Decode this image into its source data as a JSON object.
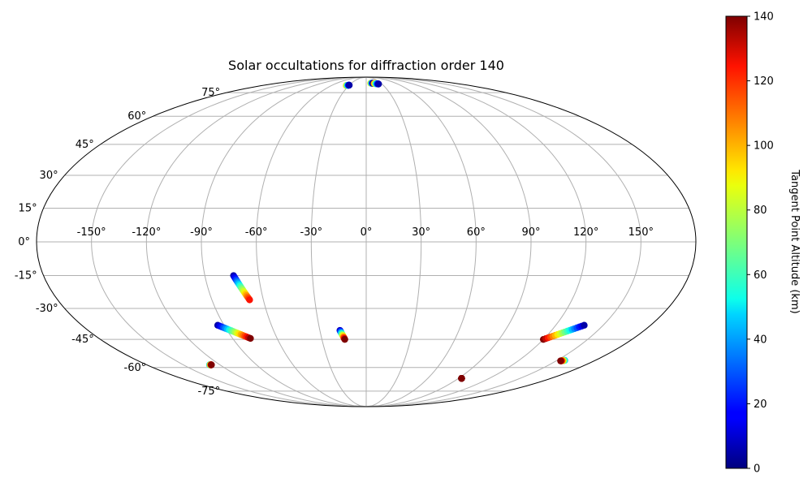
{
  "chart_data": {
    "type": "scatter",
    "projection": "mollweide",
    "title": "Solar occultations for diffraction order 140",
    "xlabel": "",
    "ylabel": "",
    "xlim": [
      -180,
      180
    ],
    "ylim": [
      -90,
      90
    ],
    "grid": true,
    "longitude_ticks": [
      -150,
      -120,
      -90,
      -60,
      -30,
      0,
      30,
      60,
      90,
      120,
      150
    ],
    "longitude_tick_labels": [
      "-150°",
      "-120°",
      "-90°",
      "-60°",
      "-30°",
      "0°",
      "30°",
      "60°",
      "90°",
      "120°",
      "150°"
    ],
    "latitude_ticks": [
      75,
      60,
      45,
      30,
      15,
      0,
      -15,
      -30,
      -45,
      -60,
      -75
    ],
    "latitude_tick_labels": [
      "75°",
      "60°",
      "45°",
      "30°",
      "15°",
      "0°",
      "-15°",
      "-30°",
      "-45°",
      "-60°",
      "-75°"
    ],
    "colorbar": {
      "label": "Tangent Point Altitude (km)",
      "colormap": "jet",
      "range": [
        0,
        140
      ],
      "ticks": [
        0,
        20,
        40,
        60,
        80,
        100,
        120,
        140
      ],
      "tick_labels": [
        "0",
        "20",
        "40",
        "60",
        "80",
        "100",
        "120",
        "140"
      ]
    },
    "series": [
      {
        "lon_start": -34.5,
        "lat_start": 80.5,
        "alt_start": 100,
        "lon_end": -30,
        "lat_end": 80.8,
        "alt_end": 5
      },
      {
        "lon_start": 9,
        "lat_start": 82.5,
        "alt_start": 100,
        "lon_end": 13.5,
        "lat_end": 82.5,
        "alt_end": 5
      },
      {
        "lon_start": 15.5,
        "lat_start": 82.3,
        "alt_start": 115,
        "lon_end": 23.5,
        "lat_end": 81.8,
        "alt_end": 5
      },
      {
        "lon_start": -74,
        "lat_start": -15,
        "alt_start": 5,
        "lon_end": -68,
        "lat_end": -26,
        "alt_end": 125
      },
      {
        "lon_start": -94,
        "lat_start": -38,
        "alt_start": 5,
        "lon_end": -78,
        "lat_end": -44.5,
        "alt_end": 140
      },
      {
        "lon_start": -17,
        "lat_start": -40.5,
        "alt_start": 5,
        "lon_end": -14.5,
        "lat_end": -45,
        "alt_end": 140
      },
      {
        "lon_start": 120,
        "lat_start": -45,
        "alt_start": 140,
        "lon_end": 138,
        "lat_end": -38,
        "alt_end": 5
      },
      {
        "lon_start": -128.5,
        "lat_start": -58.5,
        "alt_start": 40,
        "lon_end": -127,
        "lat_end": -58.5,
        "alt_end": 140
      },
      {
        "lon_start": 156,
        "lat_start": -56,
        "alt_start": 40,
        "lon_end": 153.5,
        "lat_end": -56.3,
        "alt_end": 140
      },
      {
        "lon_start": 93,
        "lat_start": -66.5,
        "alt_start": 140,
        "lon_end": 93,
        "lat_end": -66.5,
        "alt_end": 140
      }
    ]
  }
}
